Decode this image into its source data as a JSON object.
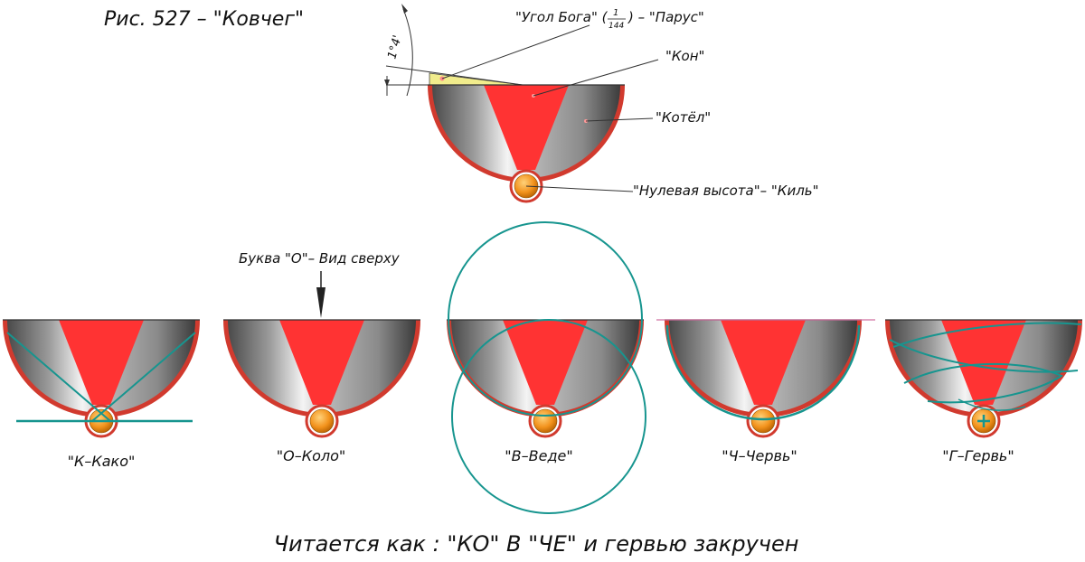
{
  "figure_title": "Рис. 527 – \"Ковчег\"",
  "angle_label": "1°4'",
  "top_labels": {
    "sail": "\"Угол Бога\" (",
    "sail_num": "1",
    "sail_den": "144",
    "sail_tail": ") – \"Парус\"",
    "kon": "\"Кон\"",
    "kotel": "\"Котёл\"",
    "keel": "\"Нулевая высота\"– \"Киль\""
  },
  "top_view_label": "Буква \"О\"– Вид сверху",
  "variants": [
    {
      "caption": "\"К–Како\""
    },
    {
      "caption": "\"О–Коло\""
    },
    {
      "caption": "\"В–Веде\""
    },
    {
      "caption": "\"Ч–Червь\""
    },
    {
      "caption": "\"Г–Гервь\""
    }
  ],
  "bottom_caption": "Читается как : \"КО\"  В  \"ЧЕ\" и гервью закручен",
  "colors": {
    "bowl_rim": "#d13a2e",
    "wedge": "#ff3333",
    "teal": "#17958f",
    "ball": "#f2921c",
    "sail": "#f1ec8c",
    "pink_line": "#d070a0"
  }
}
